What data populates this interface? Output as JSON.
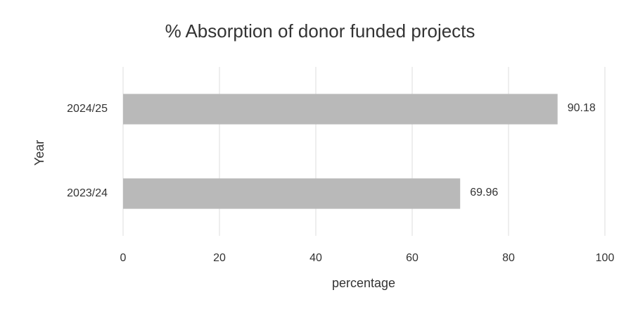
{
  "chart_data": {
    "type": "bar",
    "orientation": "horizontal",
    "title": "% Absorption of donor funded projects",
    "categories": [
      "2023/24",
      "2024/25"
    ],
    "values": [
      69.96,
      90.18
    ],
    "color": "#b9b9b9",
    "xlabel": "percentage",
    "ylabel": "Year",
    "xlim": [
      0,
      100
    ],
    "xticks": [
      0,
      20,
      40,
      60,
      80,
      100
    ],
    "grid": true
  }
}
